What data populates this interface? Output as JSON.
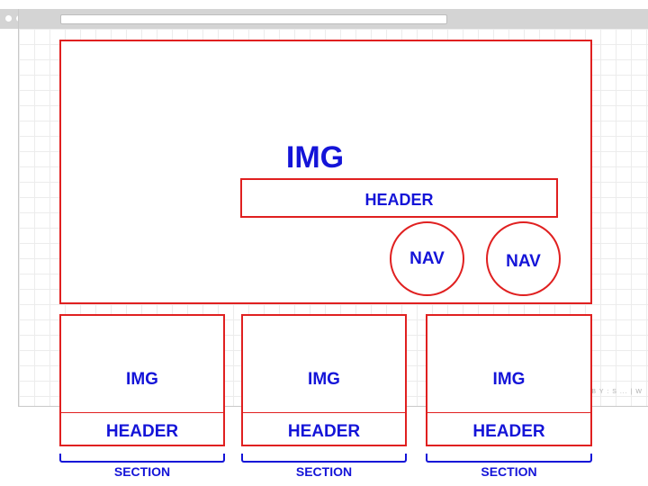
{
  "browser": {
    "window_dots": [
      "dot",
      "dot",
      "dot"
    ],
    "watermark": "B Y : S ... | W"
  },
  "hero": {
    "img_label": "IMG",
    "header_label": "HEADER",
    "nav_labels": [
      "NAV",
      "NAV"
    ]
  },
  "cards": [
    {
      "img_label": "IMG",
      "header_label": "HEADER",
      "section_label": "SECTION"
    },
    {
      "img_label": "IMG",
      "header_label": "HEADER",
      "section_label": "SECTION"
    },
    {
      "img_label": "IMG",
      "header_label": "HEADER",
      "section_label": "SECTION"
    }
  ],
  "colors": {
    "wireframe_border": "#e02020",
    "label_text": "#1414d8",
    "grid": "#ececec",
    "browser_chrome": "#d4d4d4"
  }
}
